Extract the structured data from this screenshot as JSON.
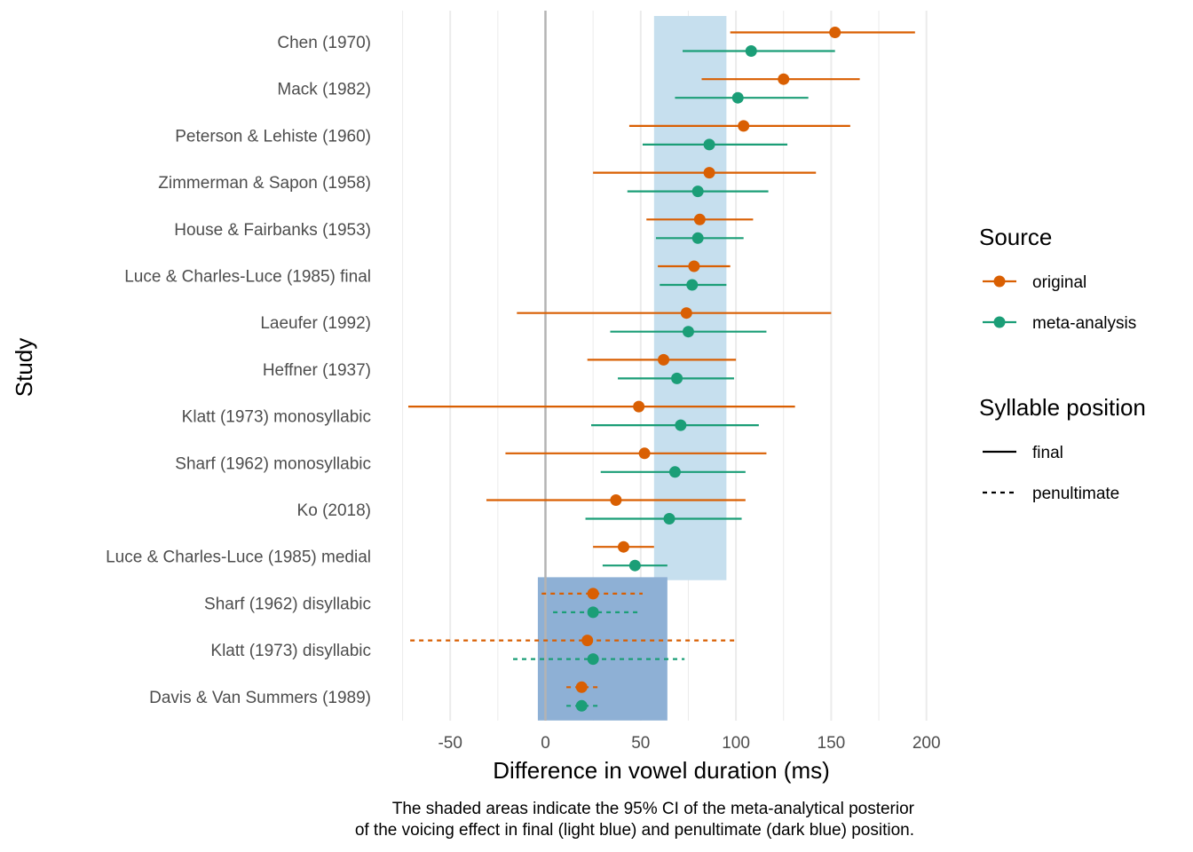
{
  "chart_data": {
    "type": "forest",
    "xlabel": "Difference in vowel duration (ms)",
    "ylabel": "Study",
    "xlim": [
      -75,
      205
    ],
    "x_ticks": [
      -50,
      0,
      50,
      100,
      150,
      200
    ],
    "x_tick_labels": [
      "-50",
      "0",
      "50",
      "100",
      "150",
      "200"
    ],
    "reference_line_x": 0,
    "grid": true,
    "shaded_regions": [
      {
        "name": "final",
        "x_range": [
          57,
          95
        ],
        "color": "#c6dfee",
        "studies_from": "Chen (1970)",
        "studies_to": "Luce & Charles-Luce (1985) medial"
      },
      {
        "name": "penultimate",
        "x_range": [
          -4,
          64
        ],
        "color": "#8eb0d5",
        "studies_from": "Sharf (1962) disyllabic",
        "studies_to": "Davis & Van Summers (1989)"
      }
    ],
    "studies": [
      {
        "label": "Chen (1970)",
        "position": "final",
        "original": {
          "est": 152,
          "lo": 97,
          "hi": 194
        },
        "meta": {
          "est": 108,
          "lo": 72,
          "hi": 152
        }
      },
      {
        "label": "Mack (1982)",
        "position": "final",
        "original": {
          "est": 125,
          "lo": 82,
          "hi": 165
        },
        "meta": {
          "est": 101,
          "lo": 68,
          "hi": 138
        }
      },
      {
        "label": "Peterson & Lehiste (1960)",
        "position": "final",
        "original": {
          "est": 104,
          "lo": 44,
          "hi": 160
        },
        "meta": {
          "est": 86,
          "lo": 51,
          "hi": 127
        }
      },
      {
        "label": "Zimmerman & Sapon (1958)",
        "position": "final",
        "original": {
          "est": 86,
          "lo": 25,
          "hi": 142
        },
        "meta": {
          "est": 80,
          "lo": 43,
          "hi": 117
        }
      },
      {
        "label": "House & Fairbanks (1953)",
        "position": "final",
        "original": {
          "est": 81,
          "lo": 53,
          "hi": 109
        },
        "meta": {
          "est": 80,
          "lo": 58,
          "hi": 104
        }
      },
      {
        "label": "Luce & Charles-Luce (1985) final",
        "position": "final",
        "original": {
          "est": 78,
          "lo": 59,
          "hi": 97
        },
        "meta": {
          "est": 77,
          "lo": 60,
          "hi": 95
        }
      },
      {
        "label": "Laeufer (1992)",
        "position": "final",
        "original": {
          "est": 74,
          "lo": -15,
          "hi": 150
        },
        "meta": {
          "est": 75,
          "lo": 34,
          "hi": 116
        }
      },
      {
        "label": "Heffner (1937)",
        "position": "final",
        "original": {
          "est": 62,
          "lo": 22,
          "hi": 100
        },
        "meta": {
          "est": 69,
          "lo": 38,
          "hi": 99
        }
      },
      {
        "label": "Klatt (1973) monosyllabic",
        "position": "final",
        "original": {
          "est": 49,
          "lo": -72,
          "hi": 131
        },
        "meta": {
          "est": 71,
          "lo": 24,
          "hi": 112
        }
      },
      {
        "label": "Sharf (1962) monosyllabic",
        "position": "final",
        "original": {
          "est": 52,
          "lo": -21,
          "hi": 116
        },
        "meta": {
          "est": 68,
          "lo": 29,
          "hi": 105
        }
      },
      {
        "label": "Ko (2018)",
        "position": "final",
        "original": {
          "est": 37,
          "lo": -31,
          "hi": 105
        },
        "meta": {
          "est": 65,
          "lo": 21,
          "hi": 103
        }
      },
      {
        "label": "Luce & Charles-Luce (1985) medial",
        "position": "final",
        "original": {
          "est": 41,
          "lo": 25,
          "hi": 57
        },
        "meta": {
          "est": 47,
          "lo": 30,
          "hi": 64
        }
      },
      {
        "label": "Sharf (1962) disyllabic",
        "position": "penultimate",
        "original": {
          "est": 25,
          "lo": -2,
          "hi": 51
        },
        "meta": {
          "est": 25,
          "lo": 4,
          "hi": 49
        }
      },
      {
        "label": "Klatt (1973) disyllabic",
        "position": "penultimate",
        "original": {
          "est": 22,
          "lo": -71,
          "hi": 100
        },
        "meta": {
          "est": 25,
          "lo": -17,
          "hi": 73
        }
      },
      {
        "label": "Davis & Van Summers (1989)",
        "position": "penultimate",
        "original": {
          "est": 19,
          "lo": 11,
          "hi": 28
        },
        "meta": {
          "est": 19,
          "lo": 11,
          "hi": 28
        }
      }
    ],
    "legend": {
      "placement": "right",
      "source_title": "Source",
      "source_items": [
        {
          "key": "original",
          "label": "original",
          "color": "#d95f02"
        },
        {
          "key": "meta",
          "label": "meta-analysis",
          "color": "#1b9e77"
        }
      ],
      "position_title": "Syllable position",
      "position_items": [
        {
          "key": "final",
          "label": "final",
          "linestyle": "solid"
        },
        {
          "key": "penultimate",
          "label": "penultimate",
          "linestyle": "dashed"
        }
      ]
    },
    "caption": [
      "The shaded areas indicate the 95% CI of the meta-analytical posterior",
      "of the voicing effect in final (light blue) and penultimate (dark blue) position."
    ]
  }
}
